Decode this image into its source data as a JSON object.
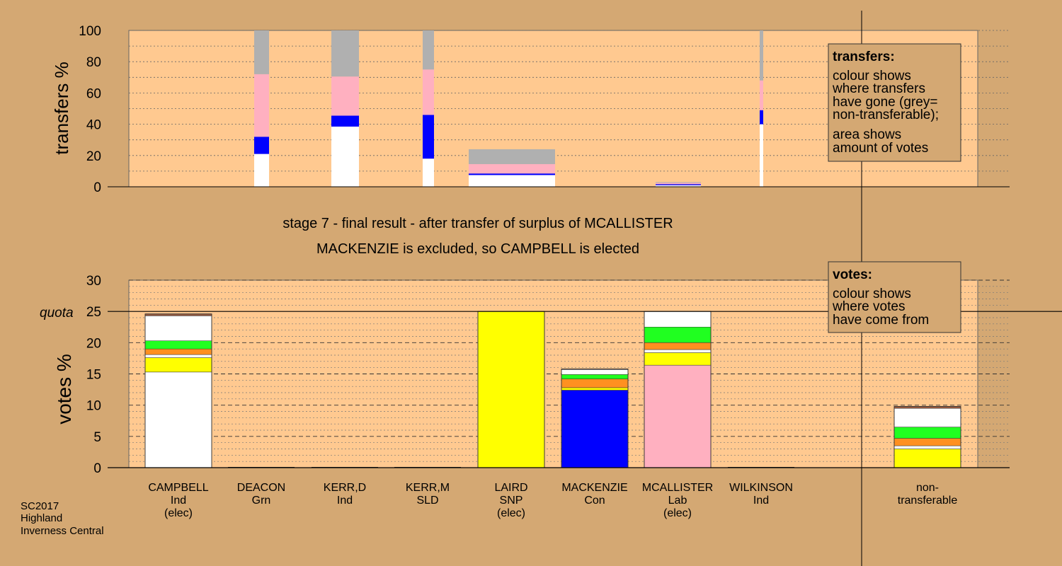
{
  "chart_data": [
    {
      "name": "transfers",
      "type": "bar",
      "ylabel": "transfers %",
      "ylim": [
        0,
        100
      ],
      "yticks": [
        0,
        20,
        40,
        60,
        80,
        100
      ],
      "colors": {
        "white": "#ffffff",
        "blue": "#0000ff",
        "pink": "#ffb0c0",
        "grey": "#b0b0b0"
      },
      "bars": [
        {
          "segments": [
            {
              "color": "white",
              "value": 21
            },
            {
              "color": "blue",
              "value": 11
            },
            {
              "color": "pink",
              "value": 40
            },
            {
              "color": "grey",
              "value": 28
            }
          ]
        },
        {
          "segments": [
            {
              "color": "white",
              "value": 38.5
            },
            {
              "color": "blue",
              "value": 7
            },
            {
              "color": "pink",
              "value": 25
            },
            {
              "color": "grey",
              "value": 29.5
            }
          ]
        },
        {
          "segments": [
            {
              "color": "white",
              "value": 18
            },
            {
              "color": "blue",
              "value": 28
            },
            {
              "color": "pink",
              "value": 29
            },
            {
              "color": "grey",
              "value": 25
            }
          ]
        },
        {
          "segments": [
            {
              "color": "white",
              "value": 7.5
            },
            {
              "color": "blue",
              "value": 1
            },
            {
              "color": "pink",
              "value": 6
            },
            {
              "color": "grey",
              "value": 9.5
            }
          ]
        },
        {
          "segments": [
            {
              "color": "white",
              "value": 1
            },
            {
              "color": "blue",
              "value": 0.7
            },
            {
              "color": "pink",
              "value": 0.8
            },
            {
              "color": "grey",
              "value": 0.5
            }
          ]
        },
        {
          "segments": [
            {
              "color": "white",
              "value": 40
            },
            {
              "color": "blue",
              "value": 9
            },
            {
              "color": "pink",
              "value": 19
            },
            {
              "color": "grey",
              "value": 32
            }
          ]
        }
      ]
    },
    {
      "name": "votes",
      "type": "bar",
      "ylabel": "votes %",
      "ylim": [
        0,
        30
      ],
      "yticks": [
        0,
        5,
        10,
        15,
        20,
        25,
        30
      ],
      "quota": 25,
      "quota_label": "quota",
      "colors": {
        "white": "#ffffff",
        "yellow": "#ffff00",
        "orange": "#ff9020",
        "green": "#20ff20",
        "blue": "#0000ff",
        "pink": "#ffb0c0",
        "brown": "#9a5a40"
      },
      "categories": [
        {
          "lines": [
            "CAMPBELL",
            "Ind",
            "(elec)"
          ]
        },
        {
          "lines": [
            "DEACON",
            "Grn"
          ]
        },
        {
          "lines": [
            "KERR,D",
            "Ind"
          ]
        },
        {
          "lines": [
            "KERR,M",
            "SLD"
          ]
        },
        {
          "lines": [
            "LAIRD",
            "SNP",
            "(elec)"
          ]
        },
        {
          "lines": [
            "MACKENZIE",
            "Con"
          ]
        },
        {
          "lines": [
            "MCALLISTER",
            "Lab",
            "(elec)"
          ]
        },
        {
          "lines": [
            "WILKINSON",
            "Ind"
          ]
        },
        {
          "lines": [
            "non-",
            "transferable"
          ]
        }
      ],
      "values": [
        24.6,
        0,
        0,
        0,
        25,
        15.8,
        25,
        0,
        9.8
      ],
      "stacks": [
        [
          {
            "color": "white",
            "value": 15.3
          },
          {
            "color": "yellow",
            "value": 2.3
          },
          {
            "color": "white",
            "value": 0.5
          },
          {
            "color": "orange",
            "value": 0.9
          },
          {
            "color": "green",
            "value": 1.3
          },
          {
            "color": "white",
            "value": 4.0
          },
          {
            "color": "brown",
            "value": 0.3
          }
        ],
        [],
        [],
        [],
        [
          {
            "color": "yellow",
            "value": 25
          }
        ],
        [
          {
            "color": "blue",
            "value": 12.4
          },
          {
            "color": "yellow",
            "value": 0.4
          },
          {
            "color": "orange",
            "value": 1.4
          },
          {
            "color": "green",
            "value": 0.7
          },
          {
            "color": "white",
            "value": 0.8
          },
          {
            "color": "brown",
            "value": 0.1
          }
        ],
        [
          {
            "color": "pink",
            "value": 16.4
          },
          {
            "color": "yellow",
            "value": 2.0
          },
          {
            "color": "white",
            "value": 0.5
          },
          {
            "color": "orange",
            "value": 1.1
          },
          {
            "color": "green",
            "value": 2.5
          },
          {
            "color": "white",
            "value": 2.5
          }
        ],
        [],
        [
          {
            "color": "yellow",
            "value": 3.0
          },
          {
            "color": "white",
            "value": 0.5
          },
          {
            "color": "orange",
            "value": 1.2
          },
          {
            "color": "green",
            "value": 1.8
          },
          {
            "color": "white",
            "value": 3.0
          },
          {
            "color": "brown",
            "value": 0.3
          }
        ]
      ]
    }
  ],
  "stage_line1": "stage 7 - final result - after transfer of surplus of MCALLISTER",
  "stage_line2": "MACKENZIE is excluded, so CAMPBELL is elected",
  "legend_transfers": {
    "title": "transfers:",
    "lines1": [
      "colour shows",
      "where transfers",
      "have gone (grey=",
      "non-transferable);"
    ],
    "lines2": [
      "area shows",
      "amount of votes"
    ]
  },
  "legend_votes": {
    "title": "votes:",
    "lines": [
      "colour shows",
      "where votes",
      "have come from"
    ]
  },
  "source": [
    "SC2017",
    "Highland",
    "Inverness Central"
  ]
}
